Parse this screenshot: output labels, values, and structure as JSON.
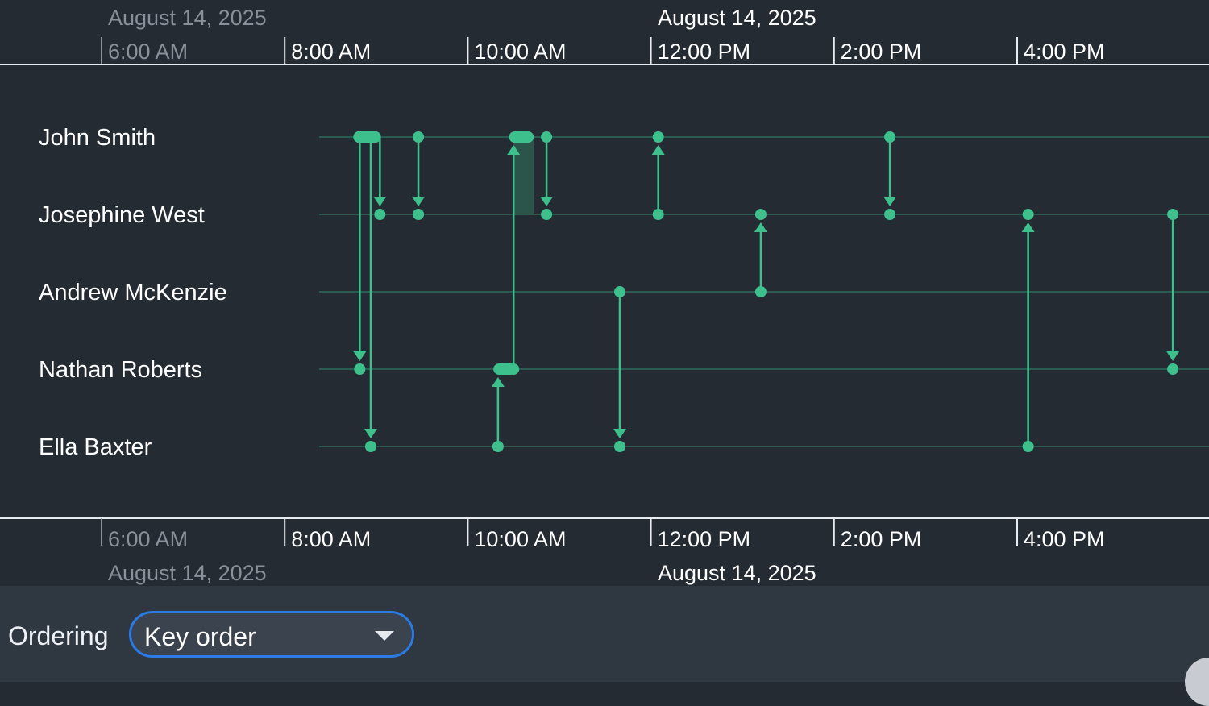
{
  "timeline": {
    "date_labels": [
      {
        "text": "August 14, 2025",
        "time": 5.5,
        "faded": true
      },
      {
        "text": "August 14, 2025",
        "time": 11.5,
        "faded": false
      }
    ],
    "ticks": [
      {
        "label": "6:00 AM",
        "time": 6,
        "faded": true
      },
      {
        "label": "8:00 AM",
        "time": 8,
        "faded": false
      },
      {
        "label": "10:00 AM",
        "time": 10,
        "faded": false
      },
      {
        "label": "12:00 PM",
        "time": 12,
        "faded": false
      },
      {
        "label": "2:00 PM",
        "time": 14,
        "faded": false
      },
      {
        "label": "4:00 PM",
        "time": 16,
        "faded": false
      }
    ],
    "people": [
      "John Smith",
      "Josephine West",
      "Andrew McKenzie",
      "Nathan Roberts",
      "Ella Baxter"
    ],
    "events": [
      {
        "from": 0,
        "to": 3,
        "time": 8.82,
        "pill_from": [
          8.75,
          9.05
        ],
        "pill_to": null
      },
      {
        "from": 0,
        "to": 4,
        "time": 8.94,
        "pill_from": [
          8.75,
          9.05
        ],
        "pill_to": null
      },
      {
        "from": 0,
        "to": 1,
        "time": 9.04,
        "pill_from": [
          8.75,
          9.05
        ],
        "pill_to": null
      },
      {
        "from": 0,
        "to": 1,
        "time": 9.46,
        "pill_from": null,
        "pill_to": null
      },
      {
        "from": 4,
        "to": 3,
        "time": 10.33,
        "pill_from": null,
        "pill_to": [
          10.28,
          10.53
        ]
      },
      {
        "from": 3,
        "to": 0,
        "time": 10.5,
        "pill_from": null,
        "pill_to": [
          10.45,
          10.72
        ]
      },
      {
        "from": 0,
        "to": 1,
        "time": 10.86,
        "pill_from": null,
        "pill_to": null
      },
      {
        "from": 2,
        "to": 4,
        "time": 11.66,
        "pill_from": null,
        "pill_to": null
      },
      {
        "from": 1,
        "to": 0,
        "time": 12.08,
        "pill_from": null,
        "pill_to": null
      },
      {
        "from": 2,
        "to": 1,
        "time": 13.2,
        "pill_from": null,
        "pill_to": null
      },
      {
        "from": 0,
        "to": 1,
        "time": 14.61,
        "pill_from": null,
        "pill_to": null
      },
      {
        "from": 4,
        "to": 1,
        "time": 16.12,
        "pill_from": null,
        "pill_to": null
      },
      {
        "from": 1,
        "to": 3,
        "time": 17.7,
        "pill_from": null,
        "pill_to": null
      }
    ],
    "highlight": {
      "time": [
        10.5,
        10.72
      ],
      "from": 0,
      "to": 1
    }
  },
  "controls": {
    "ordering_label": "Ordering",
    "ordering_value": "Key order"
  },
  "colors": {
    "background": "#252b33",
    "accent": "#3ec08c",
    "lane": "#2e6b58",
    "axis_text": "#ffffff",
    "axis_text_faded": "#8a9099",
    "select_border": "#2c7be5"
  }
}
